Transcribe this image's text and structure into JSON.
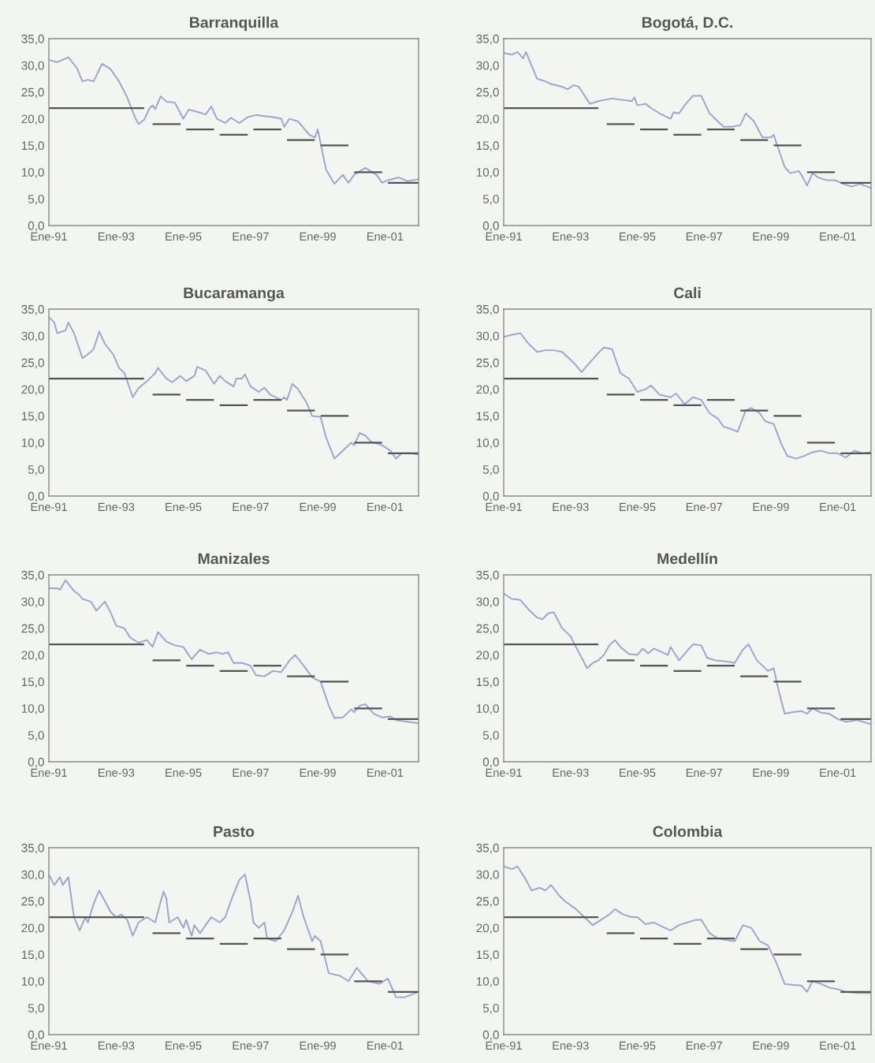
{
  "chart_data": [
    {
      "type": "line",
      "title": "Barranquilla",
      "xlim": [
        "1991-01",
        "2002-01"
      ],
      "ylim": [
        0,
        35
      ],
      "xticks": [
        {
          "value": "1991-01",
          "label": "Ene-91"
        },
        {
          "value": "1993-01",
          "label": "Ene-93"
        },
        {
          "value": "1995-01",
          "label": "Ene-95"
        },
        {
          "value": "1997-01",
          "label": "Ene-97"
        },
        {
          "value": "1999-01",
          "label": "Ene-99"
        },
        {
          "value": "2001-01",
          "label": "Ene-01"
        }
      ],
      "yticks": [
        {
          "value": 0,
          "label": "0,0"
        },
        {
          "value": 5,
          "label": "5,0"
        },
        {
          "value": 10,
          "label": "10,0"
        },
        {
          "value": 15,
          "label": "15,0"
        },
        {
          "value": 20,
          "label": "20,0"
        },
        {
          "value": 25,
          "label": "25,0"
        },
        {
          "value": 30,
          "label": "30,0"
        },
        {
          "value": 35,
          "label": "35,0"
        }
      ],
      "series": [
        {
          "type": "line",
          "color": "#9aa6cf",
          "x": [
            "1991-01",
            "1991-04",
            "1991-08",
            "1991-11",
            "1992-01",
            "1992-03",
            "1992-05",
            "1992-08",
            "1992-11",
            "1993-02",
            "1993-05",
            "1993-08",
            "1993-09",
            "1993-11",
            "1994-01",
            "1994-02",
            "1994-03",
            "1994-05",
            "1994-07",
            "1994-10",
            "1995-01",
            "1995-03",
            "1995-06",
            "1995-09",
            "1995-11",
            "1996-01",
            "1996-04",
            "1996-06",
            "1996-09",
            "1996-12",
            "1997-03",
            "1997-06",
            "1997-09",
            "1997-12",
            "1998-01",
            "1998-03",
            "1998-06",
            "1998-10",
            "1998-12",
            "1999-01",
            "1999-04",
            "1999-07",
            "1999-10",
            "1999-12",
            "2000-02",
            "2000-06",
            "2000-10",
            "2000-12",
            "2001-02",
            "2001-06",
            "2001-09",
            "2002-01"
          ],
          "values": [
            31.0,
            30.6,
            31.5,
            29.5,
            27.0,
            27.3,
            27.0,
            30.3,
            29.3,
            27.0,
            24.0,
            20.0,
            19.0,
            19.8,
            22.0,
            22.5,
            21.8,
            24.2,
            23.2,
            23.0,
            20.0,
            21.7,
            21.3,
            20.8,
            22.3,
            20.0,
            19.2,
            20.2,
            19.2,
            20.3,
            20.7,
            20.5,
            20.3,
            20.0,
            18.5,
            20.0,
            19.5,
            17.0,
            16.5,
            18.0,
            10.5,
            7.8,
            9.5,
            8.0,
            9.5,
            10.8,
            9.5,
            8.0,
            8.5,
            9.0,
            8.3,
            8.7
          ]
        },
        {
          "type": "line",
          "color": "#555555",
          "x": [
            "1991-01",
            "1993-11",
            "1994-01",
            "1994-02",
            "1994-12",
            "1995-01",
            "1995-02",
            "1995-12",
            "1996-01",
            "1996-02",
            "1996-12",
            "1997-01",
            "1997-02",
            "1997-12",
            "1998-01",
            "1998-02",
            "1998-12",
            "1999-01",
            "1999-02",
            "1999-12",
            "2000-01",
            "2000-02",
            "2000-12",
            "2001-01",
            "2001-02",
            "2002-01"
          ],
          "values": [
            22,
            22,
            null,
            19,
            19,
            null,
            18,
            18,
            null,
            17,
            17,
            null,
            18,
            18,
            null,
            16,
            16,
            null,
            15,
            15,
            null,
            10,
            10,
            null,
            8,
            8
          ]
        }
      ]
    },
    {
      "type": "line",
      "title": "Bogotá, D.C.",
      "xlim": [
        "1991-01",
        "2002-01"
      ],
      "ylim": [
        0,
        35
      ],
      "xticks": [
        {
          "value": "1991-01",
          "label": "Ene-91"
        },
        {
          "value": "1993-01",
          "label": "Ene-93"
        },
        {
          "value": "1995-01",
          "label": "Ene-95"
        },
        {
          "value": "1997-01",
          "label": "Ene-97"
        },
        {
          "value": "1999-01",
          "label": "Ene-99"
        },
        {
          "value": "2001-01",
          "label": "Ene-01"
        }
      ],
      "yticks": [
        {
          "value": 0,
          "label": "0,0"
        },
        {
          "value": 5,
          "label": "5,0"
        },
        {
          "value": 10,
          "label": "10,0"
        },
        {
          "value": 15,
          "label": "15,0"
        },
        {
          "value": 20,
          "label": "20,0"
        },
        {
          "value": 25,
          "label": "25,0"
        },
        {
          "value": 30,
          "label": "30,0"
        },
        {
          "value": 35,
          "label": "35,0"
        }
      ],
      "series": [
        {
          "type": "line",
          "color": "#9aa6cf",
          "x": [
            "1991-01",
            "1991-04",
            "1991-06",
            "1991-08",
            "1991-09",
            "1991-11",
            "1992-01",
            "1992-04",
            "1992-06",
            "1992-10",
            "1992-12",
            "1993-02",
            "1993-04",
            "1993-08",
            "1993-11",
            "1994-01",
            "1994-04",
            "1994-08",
            "1994-11",
            "1994-12",
            "1995-01",
            "1995-04",
            "1995-06",
            "1995-09",
            "1996-01",
            "1996-02",
            "1996-04",
            "1996-06",
            "1996-09",
            "1996-12",
            "1997-03",
            "1997-05",
            "1997-08",
            "1997-11",
            "1998-02",
            "1998-04",
            "1998-07",
            "1998-10",
            "1999-01",
            "1999-02",
            "1999-04",
            "1999-06",
            "1999-08",
            "1999-11",
            "1999-12",
            "2000-02",
            "2000-04",
            "2000-06",
            "2000-09",
            "2000-12",
            "2001-03",
            "2001-06",
            "2001-09",
            "2002-01"
          ],
          "values": [
            32.3,
            32.0,
            32.5,
            31.3,
            32.5,
            30.0,
            27.5,
            27.0,
            26.5,
            26.0,
            25.5,
            26.3,
            26.0,
            22.8,
            23.3,
            23.5,
            23.8,
            23.5,
            23.3,
            24.0,
            22.5,
            22.8,
            22.0,
            21.0,
            20.0,
            21.2,
            21.0,
            22.5,
            24.3,
            24.3,
            21.0,
            20.0,
            18.5,
            18.5,
            18.8,
            21.0,
            19.5,
            16.5,
            16.5,
            17.0,
            14.0,
            11.0,
            9.8,
            10.2,
            9.5,
            7.5,
            9.8,
            9.0,
            8.5,
            8.5,
            7.8,
            7.3,
            7.8,
            7.0
          ]
        },
        {
          "type": "line",
          "color": "#555555",
          "x": [
            "1991-01",
            "1993-11",
            "1994-01",
            "1994-02",
            "1994-12",
            "1995-01",
            "1995-02",
            "1995-12",
            "1996-01",
            "1996-02",
            "1996-12",
            "1997-01",
            "1997-02",
            "1997-12",
            "1998-01",
            "1998-02",
            "1998-12",
            "1999-01",
            "1999-02",
            "1999-12",
            "2000-01",
            "2000-02",
            "2000-12",
            "2001-01",
            "2001-02",
            "2002-01"
          ],
          "values": [
            22,
            22,
            null,
            19,
            19,
            null,
            18,
            18,
            null,
            17,
            17,
            null,
            18,
            18,
            null,
            16,
            16,
            null,
            15,
            15,
            null,
            10,
            10,
            null,
            8,
            8
          ]
        }
      ]
    },
    {
      "type": "line",
      "title": "Bucaramanga",
      "xlim": [
        "1991-01",
        "2002-01"
      ],
      "ylim": [
        0,
        35
      ],
      "xticks": [
        {
          "value": "1991-01",
          "label": "Ene-91"
        },
        {
          "value": "1993-01",
          "label": "Ene-93"
        },
        {
          "value": "1995-01",
          "label": "Ene-95"
        },
        {
          "value": "1997-01",
          "label": "Ene-97"
        },
        {
          "value": "1999-01",
          "label": "Ene-99"
        },
        {
          "value": "2001-01",
          "label": "Ene-01"
        }
      ],
      "yticks": [
        {
          "value": 0,
          "label": "0,0"
        },
        {
          "value": 5,
          "label": "5,0"
        },
        {
          "value": 10,
          "label": "10,0"
        },
        {
          "value": 15,
          "label": "15,0"
        },
        {
          "value": 20,
          "label": "20,0"
        },
        {
          "value": 25,
          "label": "25,0"
        },
        {
          "value": 30,
          "label": "30,0"
        },
        {
          "value": 35,
          "label": "35,0"
        }
      ],
      "series": [
        {
          "type": "line",
          "color": "#9aa6cf",
          "x": [
            "1991-01",
            "1991-03",
            "1991-04",
            "1991-07",
            "1991-08",
            "1991-10",
            "1992-01",
            "1992-04",
            "1992-05",
            "1992-07",
            "1992-09",
            "1992-12",
            "1993-02",
            "1993-04",
            "1993-06",
            "1993-07",
            "1993-09",
            "1993-12",
            "1994-03",
            "1994-04",
            "1994-07",
            "1994-09",
            "1994-12",
            "1995-02",
            "1995-05",
            "1995-06",
            "1995-09",
            "1995-12",
            "1996-02",
            "1996-04",
            "1996-07",
            "1996-08",
            "1996-10",
            "1996-11",
            "1997-01",
            "1997-04",
            "1997-06",
            "1997-08",
            "1997-12",
            "1998-01",
            "1998-02",
            "1998-04",
            "1998-06",
            "1998-09",
            "1998-11",
            "1999-02",
            "1999-04",
            "1999-07",
            "1999-10",
            "2000-01",
            "2000-02",
            "2000-04",
            "2000-06",
            "2000-08",
            "2000-12",
            "2001-03",
            "2001-05",
            "2001-07",
            "2001-10",
            "2002-01"
          ],
          "values": [
            33.5,
            32.5,
            30.5,
            31.0,
            32.5,
            30.5,
            25.8,
            27.0,
            27.5,
            30.8,
            28.5,
            26.5,
            24.0,
            23.0,
            20.0,
            18.5,
            20.2,
            21.5,
            23.0,
            24.0,
            22.0,
            21.3,
            22.5,
            21.5,
            22.5,
            24.2,
            23.5,
            21.0,
            22.5,
            21.5,
            20.5,
            22.0,
            22.0,
            22.8,
            20.5,
            19.5,
            20.3,
            19.0,
            18.0,
            18.5,
            18.0,
            21.0,
            20.0,
            17.5,
            15.0,
            14.8,
            11.0,
            7.0,
            8.5,
            10.0,
            9.5,
            11.8,
            11.3,
            10.2,
            9.5,
            8.5,
            7.0,
            8.0,
            8.0,
            7.8
          ]
        },
        {
          "type": "line",
          "color": "#555555",
          "x": [
            "1991-01",
            "1993-11",
            "1994-01",
            "1994-02",
            "1994-12",
            "1995-01",
            "1995-02",
            "1995-12",
            "1996-01",
            "1996-02",
            "1996-12",
            "1997-01",
            "1997-02",
            "1997-12",
            "1998-01",
            "1998-02",
            "1998-12",
            "1999-01",
            "1999-02",
            "1999-12",
            "2000-01",
            "2000-02",
            "2000-12",
            "2001-01",
            "2001-02",
            "2002-01"
          ],
          "values": [
            22,
            22,
            null,
            19,
            19,
            null,
            18,
            18,
            null,
            17,
            17,
            null,
            18,
            18,
            null,
            16,
            16,
            null,
            15,
            15,
            null,
            10,
            10,
            null,
            8,
            8
          ]
        }
      ]
    },
    {
      "type": "line",
      "title": "Cali",
      "xlim": [
        "1991-01",
        "2002-01"
      ],
      "ylim": [
        0,
        35
      ],
      "xticks": [
        {
          "value": "1991-01",
          "label": "Ene-91"
        },
        {
          "value": "1993-01",
          "label": "Ene-93"
        },
        {
          "value": "1995-01",
          "label": "Ene-95"
        },
        {
          "value": "1997-01",
          "label": "Ene-97"
        },
        {
          "value": "1999-01",
          "label": "Ene-99"
        },
        {
          "value": "2001-01",
          "label": "Ene-01"
        }
      ],
      "yticks": [
        {
          "value": 0,
          "label": "0,0"
        },
        {
          "value": 5,
          "label": "5,0"
        },
        {
          "value": 10,
          "label": "10,0"
        },
        {
          "value": 15,
          "label": "15,0"
        },
        {
          "value": 20,
          "label": "20,0"
        },
        {
          "value": 25,
          "label": "25,0"
        },
        {
          "value": 30,
          "label": "30,0"
        },
        {
          "value": 35,
          "label": "35,0"
        }
      ],
      "series": [
        {
          "type": "line",
          "color": "#9aa6cf",
          "x": [
            "1991-01",
            "1991-04",
            "1991-07",
            "1991-10",
            "1992-01",
            "1992-04",
            "1992-07",
            "1992-10",
            "1993-01",
            "1993-03",
            "1993-05",
            "1993-08",
            "1993-11",
            "1994-01",
            "1994-04",
            "1994-07",
            "1994-10",
            "1995-01",
            "1995-04",
            "1995-06",
            "1995-09",
            "1996-01",
            "1996-03",
            "1996-06",
            "1996-09",
            "1996-12",
            "1997-03",
            "1997-06",
            "1997-08",
            "1997-11",
            "1998-01",
            "1998-04",
            "1998-06",
            "1998-09",
            "1998-11",
            "1999-02",
            "1999-05",
            "1999-07",
            "1999-10",
            "2000-01",
            "2000-04",
            "2000-07",
            "2000-10",
            "2001-01",
            "2001-04",
            "2001-07",
            "2001-10",
            "2002-01"
          ],
          "values": [
            29.8,
            30.2,
            30.5,
            28.5,
            27.0,
            27.3,
            27.3,
            27.0,
            25.5,
            24.5,
            23.2,
            25.0,
            26.8,
            27.8,
            27.5,
            23.0,
            22.0,
            19.5,
            20.0,
            20.7,
            19.0,
            18.5,
            19.2,
            17.2,
            18.5,
            18.0,
            15.5,
            14.5,
            13.0,
            12.5,
            12.0,
            16.0,
            16.5,
            15.5,
            14.0,
            13.5,
            9.5,
            7.5,
            7.0,
            7.5,
            8.2,
            8.5,
            8.0,
            8.0,
            7.2,
            8.5,
            8.0,
            8.2
          ]
        },
        {
          "type": "line",
          "color": "#555555",
          "x": [
            "1991-01",
            "1993-11",
            "1994-01",
            "1994-02",
            "1994-12",
            "1995-01",
            "1995-02",
            "1995-12",
            "1996-01",
            "1996-02",
            "1996-12",
            "1997-01",
            "1997-02",
            "1997-12",
            "1998-01",
            "1998-02",
            "1998-12",
            "1999-01",
            "1999-02",
            "1999-12",
            "2000-01",
            "2000-02",
            "2000-12",
            "2001-01",
            "2001-02",
            "2002-01"
          ],
          "values": [
            22,
            22,
            null,
            19,
            19,
            null,
            18,
            18,
            null,
            17,
            17,
            null,
            18,
            18,
            null,
            16,
            16,
            null,
            15,
            15,
            null,
            10,
            10,
            null,
            8,
            8
          ]
        }
      ]
    },
    {
      "type": "line",
      "title": "Manizales",
      "xlim": [
        "1991-01",
        "2002-01"
      ],
      "ylim": [
        0,
        35
      ],
      "xticks": [
        {
          "value": "1991-01",
          "label": "Ene-91"
        },
        {
          "value": "1993-01",
          "label": "Ene-93"
        },
        {
          "value": "1995-01",
          "label": "Ene-95"
        },
        {
          "value": "1997-01",
          "label": "Ene-97"
        },
        {
          "value": "1999-01",
          "label": "Ene-99"
        },
        {
          "value": "2001-01",
          "label": "Ene-01"
        }
      ],
      "yticks": [
        {
          "value": 0,
          "label": "0,0"
        },
        {
          "value": 5,
          "label": "5,0"
        },
        {
          "value": 10,
          "label": "10,0"
        },
        {
          "value": 15,
          "label": "15,0"
        },
        {
          "value": 20,
          "label": "20,0"
        },
        {
          "value": 25,
          "label": "25,0"
        },
        {
          "value": 30,
          "label": "30,0"
        },
        {
          "value": 35,
          "label": "35,0"
        }
      ],
      "series": [
        {
          "type": "line",
          "color": "#9aa6cf",
          "x": [
            "1991-01",
            "1991-04",
            "1991-05",
            "1991-07",
            "1991-10",
            "1991-12",
            "1992-01",
            "1992-04",
            "1992-06",
            "1992-09",
            "1992-11",
            "1993-01",
            "1993-04",
            "1993-06",
            "1993-09",
            "1993-12",
            "1994-02",
            "1994-04",
            "1994-07",
            "1994-10",
            "1995-01",
            "1995-04",
            "1995-07",
            "1995-10",
            "1996-01",
            "1996-03",
            "1996-05",
            "1996-07",
            "1996-10",
            "1997-01",
            "1997-03",
            "1997-06",
            "1997-09",
            "1997-12",
            "1998-03",
            "1998-05",
            "1998-08",
            "1998-11",
            "1999-02",
            "1999-05",
            "1999-07",
            "1999-10",
            "2000-01",
            "2000-02",
            "2000-04",
            "2000-06",
            "2000-09",
            "2000-12",
            "2001-03",
            "2001-05",
            "2001-09",
            "2002-01"
          ],
          "values": [
            32.5,
            32.5,
            32.2,
            34.0,
            32.0,
            31.2,
            30.5,
            30.0,
            28.3,
            30.0,
            28.0,
            25.5,
            25.0,
            23.3,
            22.3,
            22.8,
            21.5,
            24.3,
            22.5,
            21.8,
            21.5,
            19.2,
            21.0,
            20.2,
            20.5,
            20.2,
            20.5,
            18.5,
            18.5,
            18.0,
            16.2,
            16.0,
            17.0,
            16.8,
            19.0,
            20.0,
            18.0,
            15.8,
            15.0,
            10.5,
            8.2,
            8.3,
            9.8,
            9.3,
            10.5,
            10.8,
            9.0,
            8.3,
            8.5,
            7.8,
            7.5,
            7.2
          ]
        },
        {
          "type": "line",
          "color": "#555555",
          "x": [
            "1991-01",
            "1993-11",
            "1994-01",
            "1994-02",
            "1994-12",
            "1995-01",
            "1995-02",
            "1995-12",
            "1996-01",
            "1996-02",
            "1996-12",
            "1997-01",
            "1997-02",
            "1997-12",
            "1998-01",
            "1998-02",
            "1998-12",
            "1999-01",
            "1999-02",
            "1999-12",
            "2000-01",
            "2000-02",
            "2000-12",
            "2001-01",
            "2001-02",
            "2002-01"
          ],
          "values": [
            22,
            22,
            null,
            19,
            19,
            null,
            18,
            18,
            null,
            17,
            17,
            null,
            18,
            18,
            null,
            16,
            16,
            null,
            15,
            15,
            null,
            10,
            10,
            null,
            8,
            8
          ]
        }
      ]
    },
    {
      "type": "line",
      "title": "Medellín",
      "xlim": [
        "1991-01",
        "2002-01"
      ],
      "ylim": [
        0,
        35
      ],
      "xticks": [
        {
          "value": "1991-01",
          "label": "Ene-91"
        },
        {
          "value": "1993-01",
          "label": "Ene-93"
        },
        {
          "value": "1995-01",
          "label": "Ene-95"
        },
        {
          "value": "1997-01",
          "label": "Ene-97"
        },
        {
          "value": "1999-01",
          "label": "Ene-99"
        },
        {
          "value": "2001-01",
          "label": "Ene-01"
        }
      ],
      "yticks": [
        {
          "value": 0,
          "label": "0,0"
        },
        {
          "value": 5,
          "label": "5,0"
        },
        {
          "value": 10,
          "label": "10,0"
        },
        {
          "value": 15,
          "label": "15,0"
        },
        {
          "value": 20,
          "label": "20,0"
        },
        {
          "value": 25,
          "label": "25,0"
        },
        {
          "value": 30,
          "label": "30,0"
        },
        {
          "value": 35,
          "label": "35,0"
        }
      ],
      "series": [
        {
          "type": "line",
          "color": "#9aa6cf",
          "x": [
            "1991-01",
            "1991-04",
            "1991-07",
            "1991-10",
            "1992-01",
            "1992-03",
            "1992-05",
            "1992-07",
            "1992-10",
            "1993-01",
            "1993-03",
            "1993-06",
            "1993-07",
            "1993-09",
            "1993-11",
            "1994-01",
            "1994-03",
            "1994-05",
            "1994-07",
            "1994-10",
            "1995-01",
            "1995-03",
            "1995-05",
            "1995-07",
            "1995-10",
            "1995-12",
            "1996-01",
            "1996-04",
            "1996-07",
            "1996-09",
            "1996-12",
            "1997-02",
            "1997-05",
            "1997-09",
            "1997-12",
            "1998-03",
            "1998-05",
            "1998-08",
            "1998-12",
            "1999-02",
            "1999-04",
            "1999-06",
            "1999-09",
            "1999-12",
            "2000-02",
            "2000-04",
            "2000-07",
            "2000-10",
            "2001-01",
            "2001-04",
            "2001-08",
            "2002-01"
          ],
          "values": [
            31.5,
            30.5,
            30.3,
            28.5,
            27.0,
            26.7,
            27.8,
            28.0,
            25.0,
            23.5,
            21.5,
            18.5,
            17.5,
            18.5,
            19.0,
            20.0,
            21.8,
            22.8,
            21.5,
            20.2,
            20.0,
            21.2,
            20.3,
            21.2,
            20.5,
            20.0,
            21.5,
            19.0,
            20.8,
            22.0,
            21.8,
            19.5,
            19.0,
            18.8,
            18.5,
            21.0,
            22.0,
            19.0,
            17.0,
            17.5,
            13.0,
            9.0,
            9.3,
            9.5,
            9.0,
            10.0,
            9.2,
            9.0,
            8.0,
            7.5,
            7.8,
            7.0
          ]
        },
        {
          "type": "line",
          "color": "#555555",
          "x": [
            "1991-01",
            "1993-11",
            "1994-01",
            "1994-02",
            "1994-12",
            "1995-01",
            "1995-02",
            "1995-12",
            "1996-01",
            "1996-02",
            "1996-12",
            "1997-01",
            "1997-02",
            "1997-12",
            "1998-01",
            "1998-02",
            "1998-12",
            "1999-01",
            "1999-02",
            "1999-12",
            "2000-01",
            "2000-02",
            "2000-12",
            "2001-01",
            "2001-02",
            "2002-01"
          ],
          "values": [
            22,
            22,
            null,
            19,
            19,
            null,
            18,
            18,
            null,
            17,
            17,
            null,
            18,
            18,
            null,
            16,
            16,
            null,
            15,
            15,
            null,
            10,
            10,
            null,
            8,
            8
          ]
        }
      ]
    },
    {
      "type": "line",
      "title": "Pasto",
      "xlim": [
        "1991-01",
        "2002-01"
      ],
      "ylim": [
        0,
        35
      ],
      "xticks": [
        {
          "value": "1991-01",
          "label": "Ene-91"
        },
        {
          "value": "1993-01",
          "label": "Ene-93"
        },
        {
          "value": "1995-01",
          "label": "Ene-95"
        },
        {
          "value": "1997-01",
          "label": "Ene-97"
        },
        {
          "value": "1999-01",
          "label": "Ene-99"
        },
        {
          "value": "2001-01",
          "label": "Ene-01"
        }
      ],
      "yticks": [
        {
          "value": 0,
          "label": "0,0"
        },
        {
          "value": 5,
          "label": "5,0"
        },
        {
          "value": 10,
          "label": "10,0"
        },
        {
          "value": 15,
          "label": "15,0"
        },
        {
          "value": 20,
          "label": "20,0"
        },
        {
          "value": 25,
          "label": "25,0"
        },
        {
          "value": 30,
          "label": "30,0"
        },
        {
          "value": 35,
          "label": "35,0"
        }
      ],
      "series": [
        {
          "type": "line",
          "color": "#9aa6cf",
          "x": [
            "1991-01",
            "1991-03",
            "1991-05",
            "1991-06",
            "1991-08",
            "1991-10",
            "1991-12",
            "1992-02",
            "1992-03",
            "1992-05",
            "1992-07",
            "1992-09",
            "1992-11",
            "1993-01",
            "1993-03",
            "1993-05",
            "1993-07",
            "1993-09",
            "1993-12",
            "1994-03",
            "1994-05",
            "1994-06",
            "1994-07",
            "1994-08",
            "1994-11",
            "1995-01",
            "1995-02",
            "1995-04",
            "1995-05",
            "1995-07",
            "1995-09",
            "1995-11",
            "1996-02",
            "1996-04",
            "1996-06",
            "1996-09",
            "1996-11",
            "1997-01",
            "1997-02",
            "1997-04",
            "1997-06",
            "1997-07",
            "1997-10",
            "1998-01",
            "1998-04",
            "1998-06",
            "1998-08",
            "1998-11",
            "1998-12",
            "1999-02",
            "1999-05",
            "1999-09",
            "1999-12",
            "2000-03",
            "2000-07",
            "2000-11",
            "2001-02",
            "2001-05",
            "2001-08",
            "2002-01"
          ],
          "values": [
            30.0,
            28.0,
            29.5,
            28.0,
            29.5,
            22.0,
            19.5,
            22.0,
            21.0,
            24.5,
            27.0,
            25.0,
            23.0,
            22.0,
            22.5,
            21.5,
            18.5,
            21.0,
            22.0,
            21.0,
            25.0,
            26.8,
            25.5,
            21.0,
            22.0,
            20.0,
            21.5,
            18.5,
            20.5,
            19.0,
            20.5,
            22.0,
            21.0,
            22.0,
            25.0,
            29.0,
            30.0,
            25.0,
            21.0,
            20.0,
            21.0,
            18.0,
            17.5,
            19.5,
            23.0,
            26.0,
            22.0,
            17.5,
            18.5,
            17.5,
            11.5,
            11.0,
            10.0,
            12.5,
            10.0,
            9.5,
            10.5,
            7.0,
            7.0,
            8.0
          ]
        },
        {
          "type": "line",
          "color": "#555555",
          "x": [
            "1991-01",
            "1993-11",
            "1994-01",
            "1994-02",
            "1994-12",
            "1995-01",
            "1995-02",
            "1995-12",
            "1996-01",
            "1996-02",
            "1996-12",
            "1997-01",
            "1997-02",
            "1997-12",
            "1998-01",
            "1998-02",
            "1998-12",
            "1999-01",
            "1999-02",
            "1999-12",
            "2000-01",
            "2000-02",
            "2000-12",
            "2001-01",
            "2001-02",
            "2002-01"
          ],
          "values": [
            22,
            22,
            null,
            19,
            19,
            null,
            18,
            18,
            null,
            17,
            17,
            null,
            18,
            18,
            null,
            16,
            16,
            null,
            15,
            15,
            null,
            10,
            10,
            null,
            8,
            8
          ]
        }
      ]
    },
    {
      "type": "line",
      "title": "Colombia",
      "xlim": [
        "1991-01",
        "2002-01"
      ],
      "ylim": [
        0,
        35
      ],
      "xticks": [
        {
          "value": "1991-01",
          "label": "Ene-91"
        },
        {
          "value": "1993-01",
          "label": "Ene-93"
        },
        {
          "value": "1995-01",
          "label": "Ene-95"
        },
        {
          "value": "1997-01",
          "label": "Ene-97"
        },
        {
          "value": "1999-01",
          "label": "Ene-99"
        },
        {
          "value": "2001-01",
          "label": "Ene-01"
        }
      ],
      "yticks": [
        {
          "value": 0,
          "label": "0,0"
        },
        {
          "value": 5,
          "label": "5,0"
        },
        {
          "value": 10,
          "label": "10,0"
        },
        {
          "value": 15,
          "label": "15,0"
        },
        {
          "value": 20,
          "label": "20,0"
        },
        {
          "value": 25,
          "label": "25,0"
        },
        {
          "value": 30,
          "label": "30,0"
        },
        {
          "value": 35,
          "label": "35,0"
        }
      ],
      "series": [
        {
          "type": "line",
          "color": "#9aa6cf",
          "x": [
            "1991-01",
            "1991-04",
            "1991-06",
            "1991-09",
            "1991-11",
            "1992-02",
            "1992-04",
            "1992-06",
            "1992-09",
            "1992-11",
            "1993-03",
            "1993-06",
            "1993-09",
            "1993-12",
            "1994-03",
            "1994-05",
            "1994-08",
            "1994-11",
            "1995-01",
            "1995-04",
            "1995-07",
            "1995-10",
            "1996-01",
            "1996-04",
            "1996-07",
            "1996-10",
            "1996-12",
            "1997-03",
            "1997-06",
            "1997-09",
            "1997-12",
            "1998-03",
            "1998-06",
            "1998-09",
            "1998-12",
            "1999-03",
            "1999-06",
            "1999-09",
            "1999-12",
            "2000-02",
            "2000-04",
            "2000-07",
            "2000-10",
            "2001-01",
            "2001-04",
            "2001-08",
            "2002-01"
          ],
          "values": [
            31.5,
            31.0,
            31.5,
            29.0,
            27.0,
            27.5,
            27.0,
            28.0,
            26.0,
            25.0,
            23.5,
            22.0,
            20.5,
            21.5,
            22.5,
            23.5,
            22.5,
            22.0,
            22.0,
            20.7,
            21.0,
            20.2,
            19.5,
            20.5,
            21.0,
            21.5,
            21.5,
            19.0,
            18.0,
            17.7,
            17.5,
            20.5,
            20.0,
            17.5,
            16.7,
            13.5,
            9.5,
            9.3,
            9.2,
            8.0,
            10.0,
            9.5,
            8.8,
            8.5,
            8.0,
            7.8,
            7.8
          ]
        },
        {
          "type": "line",
          "color": "#555555",
          "x": [
            "1991-01",
            "1993-11",
            "1994-01",
            "1994-02",
            "1994-12",
            "1995-01",
            "1995-02",
            "1995-12",
            "1996-01",
            "1996-02",
            "1996-12",
            "1997-01",
            "1997-02",
            "1997-12",
            "1998-01",
            "1998-02",
            "1998-12",
            "1999-01",
            "1999-02",
            "1999-12",
            "2000-01",
            "2000-02",
            "2000-12",
            "2001-01",
            "2001-02",
            "2002-01"
          ],
          "values": [
            22,
            22,
            null,
            19,
            19,
            null,
            18,
            18,
            null,
            17,
            17,
            null,
            18,
            18,
            null,
            16,
            16,
            null,
            15,
            15,
            null,
            10,
            10,
            null,
            8,
            8
          ]
        }
      ]
    }
  ]
}
